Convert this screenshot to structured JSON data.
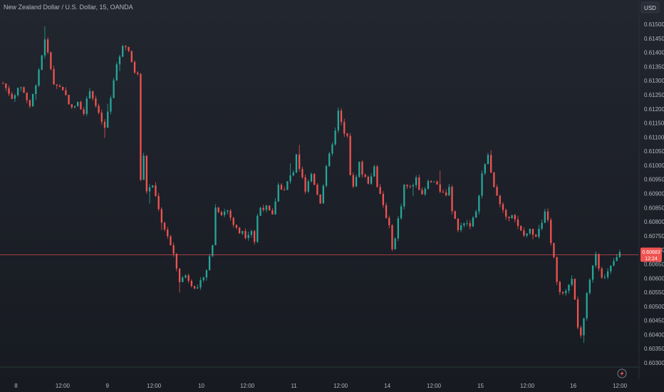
{
  "header": {
    "title": "New Zealand Dollar / U.S. Dollar, 15, OANDA",
    "currency": "USD"
  },
  "colors": {
    "up": "#26a69a",
    "down": "#ef5350",
    "last_price_line": "#ef5350",
    "axis_text": "#b2b5be"
  },
  "chart_data": {
    "type": "candlestick",
    "ylim": [
      0.603,
      0.6155
    ],
    "yticks": [
      "0.61500",
      "0.61450",
      "0.61400",
      "0.61350",
      "0.61300",
      "0.61250",
      "0.61200",
      "0.61150",
      "0.61100",
      "0.61050",
      "0.61000",
      "0.60950",
      "0.60900",
      "0.60850",
      "0.60800",
      "0.60750",
      "0.60700",
      "0.60650",
      "0.60600",
      "0.60550",
      "0.60500",
      "0.60450",
      "0.60400",
      "0.60350",
      "0.60300"
    ],
    "xticks": [
      {
        "label": "8",
        "pos": 0.025
      },
      {
        "label": "12:00",
        "pos": 0.098
      },
      {
        "label": "9",
        "pos": 0.168
      },
      {
        "label": "12:00",
        "pos": 0.241
      },
      {
        "label": "10",
        "pos": 0.315
      },
      {
        "label": "12:00",
        "pos": 0.387
      },
      {
        "label": "11",
        "pos": 0.46
      },
      {
        "label": "12:00",
        "pos": 0.533
      },
      {
        "label": "14",
        "pos": 0.606
      },
      {
        "label": "12:00",
        "pos": 0.679
      },
      {
        "label": "15",
        "pos": 0.752
      },
      {
        "label": "12:00",
        "pos": 0.825
      },
      {
        "label": "16",
        "pos": 0.897
      },
      {
        "label": "12:00",
        "pos": 0.97
      }
    ],
    "last_price": 0.60683,
    "last_price_label": "0.60683",
    "countdown": "12:24",
    "path": [
      [
        0,
        0.6129
      ],
      [
        3,
        0.6124
      ],
      [
        6,
        0.6128
      ],
      [
        9,
        0.6121
      ],
      [
        11,
        0.6129
      ],
      [
        13,
        0.6139
      ],
      [
        14,
        0.6145
      ],
      [
        17,
        0.6129
      ],
      [
        20,
        0.6127
      ],
      [
        23,
        0.612
      ],
      [
        25,
        0.6122
      ],
      [
        27,
        0.6119
      ],
      [
        29,
        0.6127
      ],
      [
        32,
        0.6118
      ],
      [
        34,
        0.6113
      ],
      [
        36,
        0.6124
      ],
      [
        38,
        0.6135
      ],
      [
        40,
        0.6143
      ],
      [
        42,
        0.614
      ],
      [
        44,
        0.6133
      ],
      [
        45,
        0.6132
      ],
      [
        46,
        0.6095
      ],
      [
        47,
        0.6103
      ],
      [
        48,
        0.6091
      ],
      [
        50,
        0.6093
      ],
      [
        52,
        0.6085
      ],
      [
        53,
        0.608
      ],
      [
        55,
        0.6075
      ],
      [
        57,
        0.6068
      ],
      [
        59,
        0.6059
      ],
      [
        61,
        0.6061
      ],
      [
        63,
        0.6058
      ],
      [
        65,
        0.6056
      ],
      [
        67,
        0.6061
      ],
      [
        68,
        0.6063
      ],
      [
        70,
        0.6072
      ],
      [
        71,
        0.6085
      ],
      [
        73,
        0.6083
      ],
      [
        75,
        0.6084
      ],
      [
        77,
        0.6079
      ],
      [
        79,
        0.6076
      ],
      [
        80,
        0.6077
      ],
      [
        81,
        0.6075
      ],
      [
        83,
        0.6077
      ],
      [
        84,
        0.6073
      ],
      [
        85,
        0.6082
      ],
      [
        86,
        0.6085
      ],
      [
        88,
        0.6085
      ],
      [
        90,
        0.6082
      ],
      [
        92,
        0.6093
      ],
      [
        94,
        0.6091
      ],
      [
        95,
        0.6094
      ],
      [
        97,
        0.6098
      ],
      [
        98,
        0.6104
      ],
      [
        99,
        0.6099
      ],
      [
        100,
        0.6096
      ],
      [
        101,
        0.6091
      ],
      [
        103,
        0.6097
      ],
      [
        105,
        0.609
      ],
      [
        106,
        0.6087
      ],
      [
        108,
        0.6099
      ],
      [
        110,
        0.6108
      ],
      [
        111,
        0.6112
      ],
      [
        112,
        0.6119
      ],
      [
        113,
        0.6115
      ],
      [
        114,
        0.6111
      ],
      [
        115,
        0.611
      ],
      [
        115.5,
        0.6104
      ],
      [
        116,
        0.6097
      ],
      [
        117,
        0.6092
      ],
      [
        119,
        0.6101
      ],
      [
        120,
        0.6097
      ],
      [
        122,
        0.6094
      ],
      [
        124,
        0.6099
      ],
      [
        125,
        0.6093
      ],
      [
        126,
        0.609
      ],
      [
        128,
        0.6082
      ],
      [
        129,
        0.6078
      ],
      [
        130,
        0.6071
      ],
      [
        131,
        0.6074
      ],
      [
        132,
        0.6081
      ],
      [
        133,
        0.6086
      ],
      [
        134,
        0.6093
      ],
      [
        136,
        0.6092
      ],
      [
        138,
        0.6095
      ],
      [
        140,
        0.6089
      ],
      [
        142,
        0.6094
      ],
      [
        144,
        0.6094
      ],
      [
        146,
        0.6091
      ],
      [
        148,
        0.6089
      ],
      [
        149,
        0.6093
      ],
      [
        150,
        0.6084
      ],
      [
        151,
        0.6081
      ],
      [
        152,
        0.6077
      ],
      [
        154,
        0.608
      ],
      [
        156,
        0.6079
      ],
      [
        158,
        0.6083
      ],
      [
        160,
        0.6097
      ],
      [
        162,
        0.6103
      ],
      [
        163,
        0.6097
      ],
      [
        164,
        0.6093
      ],
      [
        166,
        0.6086
      ],
      [
        168,
        0.6081
      ],
      [
        170,
        0.6083
      ],
      [
        172,
        0.6078
      ],
      [
        174,
        0.6075
      ],
      [
        176,
        0.6077
      ],
      [
        178,
        0.6075
      ],
      [
        179,
        0.6077
      ],
      [
        180,
        0.6079
      ],
      [
        181,
        0.6083
      ],
      [
        182,
        0.6081
      ],
      [
        183,
        0.6072
      ],
      [
        184,
        0.6067
      ],
      [
        185,
        0.6058
      ],
      [
        186,
        0.6055
      ],
      [
        187,
        0.6054
      ],
      [
        188,
        0.6055
      ],
      [
        189,
        0.6058
      ],
      [
        190,
        0.606
      ],
      [
        191,
        0.6053
      ],
      [
        192,
        0.6043
      ],
      [
        193,
        0.6039
      ],
      [
        194,
        0.6045
      ],
      [
        195,
        0.6054
      ],
      [
        196,
        0.6059
      ],
      [
        197,
        0.6065
      ],
      [
        198,
        0.6069
      ],
      [
        199,
        0.6064
      ],
      [
        200,
        0.6061
      ],
      [
        201,
        0.606
      ],
      [
        202,
        0.6062
      ],
      [
        203,
        0.6064
      ],
      [
        204,
        0.6066
      ],
      [
        205,
        0.6067
      ],
      [
        206,
        0.6069
      ]
    ]
  }
}
